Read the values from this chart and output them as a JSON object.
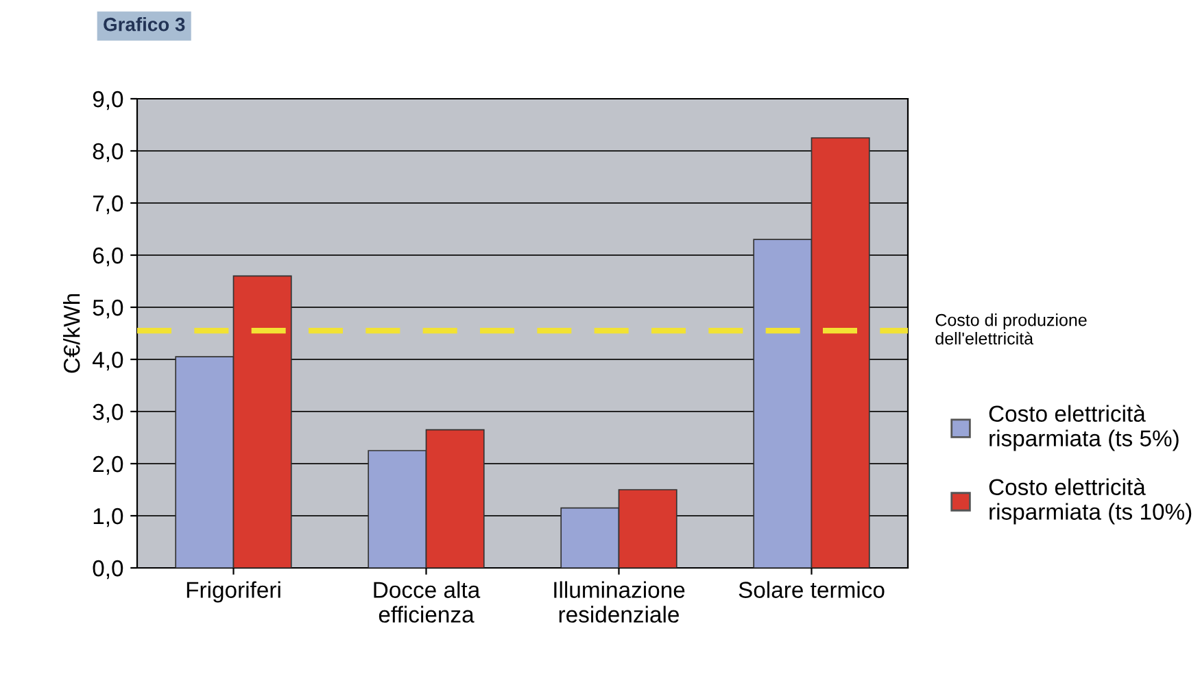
{
  "chart_data": {
    "type": "bar",
    "title": "Grafico 3",
    "ylabel": "C€/kWh",
    "categories": [
      "Frigoriferi",
      "Docce alta\nefficienza",
      "Illuminazione\nresidenziale",
      "Solare termico"
    ],
    "series": [
      {
        "name": "Costo elettricità\nrisparmiata (ts 5%)",
        "color": "#99a5d6",
        "values": [
          4.05,
          2.25,
          1.15,
          6.3
        ]
      },
      {
        "name": "Costo elettricità\nrisparmiata (ts 10%)",
        "color": "#d93a2f",
        "values": [
          5.6,
          2.65,
          1.5,
          8.25
        ]
      }
    ],
    "ylim": [
      0,
      9
    ],
    "yticks": [
      {
        "value": 0,
        "label": "0,0"
      },
      {
        "value": 1,
        "label": "1,0"
      },
      {
        "value": 2,
        "label": "2,0"
      },
      {
        "value": 3,
        "label": "3,0"
      },
      {
        "value": 4,
        "label": "4,0"
      },
      {
        "value": 5,
        "label": "5,0"
      },
      {
        "value": 6,
        "label": "6,0"
      },
      {
        "value": 7,
        "label": "7,0"
      },
      {
        "value": 8,
        "label": "8,0"
      },
      {
        "value": 9,
        "label": "9,0"
      }
    ],
    "ref_lines": [
      {
        "axis": "y",
        "value": 4.55,
        "label": "Costo di produzione\ndell'elettricità",
        "color": "#f2e234",
        "line_style": "dashed"
      }
    ],
    "grid": "y",
    "legend": "right"
  }
}
